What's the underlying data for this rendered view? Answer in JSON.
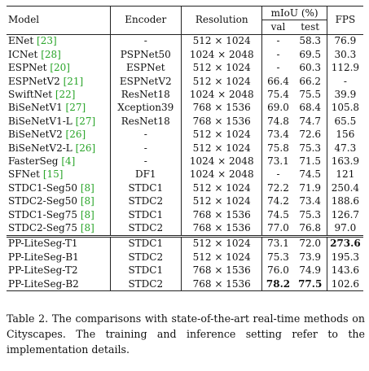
{
  "table": {
    "headers": {
      "model": "Model",
      "encoder": "Encoder",
      "resolution": "Resolution",
      "miou": "mIoU (%)",
      "val": "val",
      "test": "test",
      "fps": "FPS"
    },
    "rows": [
      {
        "name": "ENet",
        "ref": "[23]",
        "encoder": "-",
        "resolution": "512 × 1024",
        "val": "-",
        "test": "58.3",
        "fps": "76.9"
      },
      {
        "name": "ICNet",
        "ref": "[28]",
        "encoder": "PSPNet50",
        "resolution": "1024 × 2048",
        "val": "-",
        "test": "69.5",
        "fps": "30.3"
      },
      {
        "name": "ESPNet",
        "ref": "[20]",
        "encoder": "ESPNet",
        "resolution": "512 × 1024",
        "val": "-",
        "test": "60.3",
        "fps": "112.9"
      },
      {
        "name": "ESPNetV2",
        "ref": "[21]",
        "encoder": "ESPNetV2",
        "resolution": "512 × 1024",
        "val": "66.4",
        "test": "66.2",
        "fps": "-"
      },
      {
        "name": "SwiftNet",
        "ref": "[22]",
        "encoder": "ResNet18",
        "resolution": "1024 × 2048",
        "val": "75.4",
        "test": "75.5",
        "fps": "39.9"
      },
      {
        "name": "BiSeNetV1",
        "ref": "[27]",
        "encoder": "Xception39",
        "resolution": "768 × 1536",
        "val": "69.0",
        "test": "68.4",
        "fps": "105.8"
      },
      {
        "name": "BiSeNetV1-L",
        "ref": "[27]",
        "encoder": "ResNet18",
        "resolution": "768 × 1536",
        "val": "74.8",
        "test": "74.7",
        "fps": "65.5"
      },
      {
        "name": "BiSeNetV2",
        "ref": "[26]",
        "encoder": "-",
        "resolution": "512 × 1024",
        "val": "73.4",
        "test": "72.6",
        "fps": "156"
      },
      {
        "name": "BiSeNetV2-L",
        "ref": "[26]",
        "encoder": "-",
        "resolution": "512 × 1024",
        "val": "75.8",
        "test": "75.3",
        "fps": "47.3"
      },
      {
        "name": "FasterSeg",
        "ref": "[4]",
        "encoder": "-",
        "resolution": "1024 × 2048",
        "val": "73.1",
        "test": "71.5",
        "fps": "163.9"
      },
      {
        "name": "SFNet",
        "ref": "[15]",
        "encoder": "DF1",
        "resolution": "1024 × 2048",
        "val": "-",
        "test": "74.5",
        "fps": "121"
      },
      {
        "name": "STDC1-Seg50",
        "ref": "[8]",
        "encoder": "STDC1",
        "resolution": "512 × 1024",
        "val": "72.2",
        "test": "71.9",
        "fps": "250.4"
      },
      {
        "name": "STDC2-Seg50",
        "ref": "[8]",
        "encoder": "STDC2",
        "resolution": "512 × 1024",
        "val": "74.2",
        "test": "73.4",
        "fps": "188.6"
      },
      {
        "name": "STDC1-Seg75",
        "ref": "[8]",
        "encoder": "STDC1",
        "resolution": "768 × 1536",
        "val": "74.5",
        "test": "75.3",
        "fps": "126.7"
      },
      {
        "name": "STDC2-Seg75",
        "ref": "[8]",
        "encoder": "STDC2",
        "resolution": "768 × 1536",
        "val": "77.0",
        "test": "76.8",
        "fps": "97.0"
      }
    ],
    "ours": [
      {
        "name": "PP-LiteSeg-T1",
        "ref": "",
        "encoder": "STDC1",
        "resolution": "512 × 1024",
        "val": "73.1",
        "test": "72.0",
        "fps": "273.6",
        "bold_fps": true
      },
      {
        "name": "PP-LiteSeg-B1",
        "ref": "",
        "encoder": "STDC2",
        "resolution": "512 × 1024",
        "val": "75.3",
        "test": "73.9",
        "fps": "195.3"
      },
      {
        "name": "PP-LiteSeg-T2",
        "ref": "",
        "encoder": "STDC1",
        "resolution": "768 × 1536",
        "val": "76.0",
        "test": "74.9",
        "fps": "143.6"
      },
      {
        "name": "PP-LiteSeg-B2",
        "ref": "",
        "encoder": "STDC2",
        "resolution": "768 × 1536",
        "val": "78.2",
        "test": "77.5",
        "fps": "102.6",
        "bold_val": true,
        "bold_test": true
      }
    ]
  },
  "caption": "Table 2. The comparisons with state-of-the-art real-time methods on Cityscapes. The training and inference setting refer to the implementation details."
}
